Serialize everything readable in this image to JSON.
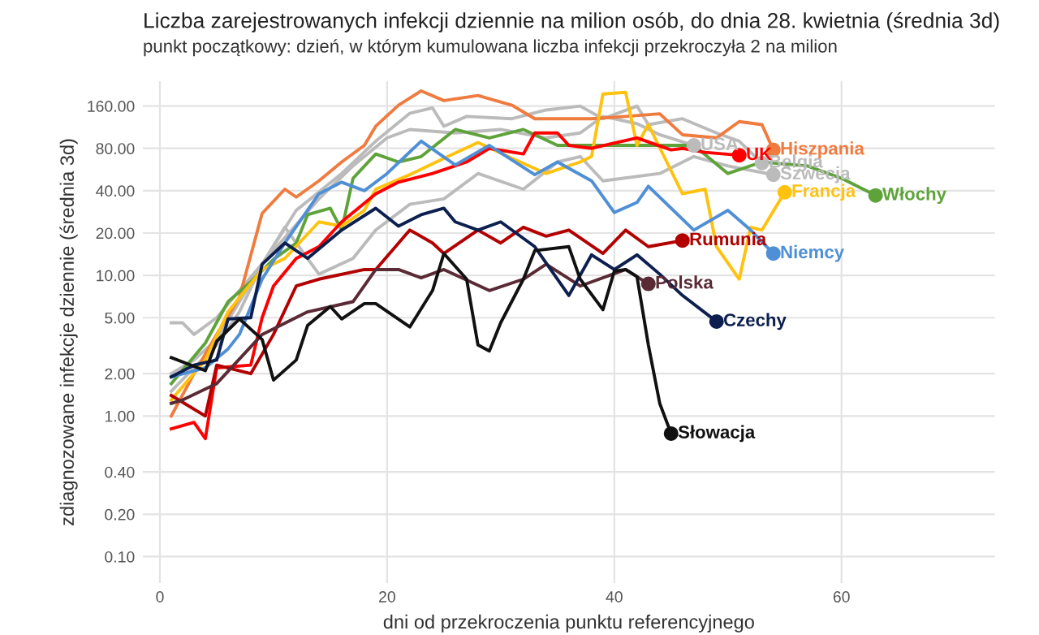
{
  "chart_data": {
    "type": "line",
    "title": "Liczba zarejestrowanych infekcji dziennie na milion osób, do dnia 28. kwietnia (średnia 3d)",
    "subtitle": "punkt początkowy: dzień, w którym kumulowana liczba infekcji przekroczyła 2 na milion",
    "xlabel": "dni od przekroczenia punktu referencyjnego",
    "ylabel": "zdiagnozowane infekcje dziennie (średnia 3d)",
    "log": true,
    "grid": true,
    "legend": false,
    "marker": "none",
    "line_style": "solid",
    "xlim": [
      -1.5,
      73.5
    ],
    "xticks": [
      0,
      20,
      40,
      60
    ],
    "ylim": [
      0.065,
      240
    ],
    "yticks": [
      {
        "value": 0.1,
        "label": "0.10"
      },
      {
        "value": 0.2,
        "label": "0.20"
      },
      {
        "value": 0.4,
        "label": "0.40"
      },
      {
        "value": 1,
        "label": "1.00"
      },
      {
        "value": 2,
        "label": "2.00"
      },
      {
        "value": 5,
        "label": "5.00"
      },
      {
        "value": 10,
        "label": "10.00"
      },
      {
        "value": 20,
        "label": "20.00"
      },
      {
        "value": 40,
        "label": "40.00"
      },
      {
        "value": 80,
        "label": "80.00"
      },
      {
        "value": 160,
        "label": "160.00"
      }
    ],
    "series": [
      {
        "name": "USA",
        "color": "#bbbbbb",
        "x": [
          1,
          2,
          3,
          5,
          7,
          10,
          14,
          17,
          20,
          22,
          26,
          30,
          34,
          37,
          39,
          42,
          44,
          47
        ],
        "values": [
          4.6,
          4.6,
          3.8,
          5.0,
          7.8,
          15,
          35,
          60,
          95,
          109,
          103,
          109,
          95,
          103,
          135,
          120,
          100,
          84
        ]
      },
      {
        "name": "Belgia",
        "color": "#bbbbbb",
        "x": [
          1,
          3,
          5,
          7,
          9,
          12,
          16,
          19,
          22,
          24,
          25,
          27,
          31,
          34,
          37,
          39,
          42,
          43,
          46,
          49,
          51,
          53
        ],
        "values": [
          2.0,
          2.5,
          3.5,
          6.5,
          12,
          29,
          53,
          90,
          142,
          155,
          115,
          135,
          130,
          150,
          160,
          130,
          160,
          118,
          130,
          103,
          90,
          63
        ]
      },
      {
        "name": "Szwecja",
        "color": "#bbbbbb",
        "x": [
          1,
          3,
          5,
          7,
          9,
          11,
          14,
          17,
          19,
          22,
          25,
          28,
          32,
          35,
          37,
          39,
          44,
          47,
          50,
          54
        ],
        "values": [
          1.5,
          2.2,
          3.2,
          5.5,
          12,
          22,
          10.2,
          13.2,
          21,
          32,
          35,
          53,
          41,
          64,
          70,
          47,
          53,
          70,
          60,
          52
        ]
      },
      {
        "name": "Hiszpania",
        "color": "#f07b3f",
        "x": [
          1,
          3,
          5,
          7,
          9,
          11,
          12,
          14,
          16,
          18,
          19,
          21,
          23,
          25,
          28,
          31,
          33,
          36,
          38,
          41,
          44,
          46,
          49,
          51,
          53,
          54
        ],
        "values": [
          1.0,
          2.0,
          3.8,
          7,
          27.6,
          41,
          36,
          47,
          64,
          84,
          115,
          162,
          205,
          175,
          190,
          162,
          130,
          130,
          130,
          135,
          141,
          100,
          95,
          124,
          118,
          78
        ]
      },
      {
        "name": "Włochy",
        "color": "#5ea33a",
        "x": [
          1,
          4,
          6,
          8,
          10,
          12,
          13,
          15,
          16,
          17,
          19,
          21,
          23,
          26,
          29,
          32,
          35,
          38,
          42,
          47,
          50,
          53,
          57,
          60,
          63
        ],
        "values": [
          1.7,
          3.3,
          6.5,
          9,
          13,
          17,
          27,
          30,
          21,
          49,
          73,
          64,
          70,
          109,
          95,
          109,
          84,
          84,
          84,
          84,
          53,
          64,
          60,
          49,
          37
        ]
      },
      {
        "name": "Francja",
        "color": "#ffc20e",
        "x": [
          1,
          4,
          6,
          9,
          11,
          14,
          16,
          18,
          19,
          22,
          25,
          28,
          31,
          34,
          37,
          38,
          39,
          41,
          42,
          43,
          46,
          48,
          49,
          51,
          52,
          53,
          55
        ],
        "values": [
          1.3,
          2.5,
          5.5,
          11,
          13.2,
          24,
          22.4,
          29,
          41,
          52,
          68,
          88,
          68,
          53,
          64,
          70,
          195,
          200,
          84,
          118,
          38,
          41,
          16,
          9.4,
          22,
          21,
          39
        ]
      },
      {
        "name": "UK",
        "color": "#ff0000",
        "x": [
          1,
          3,
          4,
          5,
          8,
          9,
          10,
          12,
          14,
          16,
          19,
          21,
          24,
          27,
          29,
          32,
          33,
          35,
          36,
          38,
          42,
          45,
          46,
          48,
          51
        ],
        "values": [
          0.81,
          0.9,
          0.69,
          2.2,
          2.3,
          5,
          8.4,
          13.2,
          16,
          24,
          38,
          46,
          53,
          64,
          80,
          73,
          103,
          103,
          84,
          80,
          95,
          78,
          80,
          75,
          71.5
        ]
      },
      {
        "name": "Niemcy",
        "color": "#4f8fd6",
        "x": [
          1,
          4,
          6,
          7,
          9,
          11,
          14,
          16,
          18,
          20,
          23,
          26,
          29,
          33,
          35,
          38,
          40,
          42,
          43,
          47,
          50,
          52,
          54
        ],
        "values": [
          1.9,
          2.2,
          3.0,
          3.8,
          9.4,
          17,
          38,
          46,
          40,
          53,
          90,
          61,
          84,
          52,
          64,
          47,
          28,
          33,
          43,
          21,
          29,
          21,
          14.3
        ]
      },
      {
        "name": "Rumunia",
        "color": "#b30000",
        "x": [
          1,
          4,
          5,
          8,
          10,
          12,
          14,
          18,
          19,
          22,
          24,
          25,
          28,
          30,
          32,
          34,
          36,
          39,
          41,
          43,
          46
        ],
        "values": [
          1.4,
          1.0,
          2.3,
          2.0,
          3.8,
          8.4,
          9.4,
          11,
          11,
          21,
          17,
          14.3,
          21,
          17,
          22,
          19,
          21,
          14.3,
          21,
          16,
          17.7
        ]
      },
      {
        "name": "Polska",
        "color": "#5a2a35",
        "x": [
          1,
          2,
          5,
          9,
          13,
          17,
          19,
          21,
          23,
          25,
          29,
          32,
          34,
          37,
          41,
          43
        ],
        "values": [
          1.23,
          1.3,
          1.7,
          3.8,
          5.5,
          6.5,
          11,
          11,
          9.6,
          11,
          7.8,
          9.4,
          12,
          8.4,
          11,
          8.7
        ]
      },
      {
        "name": "Czechy",
        "color": "#0d1f4f",
        "x": [
          1,
          3,
          5,
          6,
          8,
          9,
          11,
          13,
          16,
          19,
          21,
          23,
          25,
          26,
          28,
          30,
          33,
          35,
          36,
          38,
          40,
          42,
          44,
          46,
          49
        ],
        "values": [
          1.9,
          2.3,
          2.5,
          4.9,
          5.0,
          12,
          17,
          13.2,
          21,
          30,
          22.4,
          27,
          30,
          24,
          21,
          24,
          16,
          9.4,
          7.2,
          14,
          11,
          14,
          10.2,
          7.2,
          4.7
        ]
      },
      {
        "name": "Słowacja",
        "color": "#111111",
        "x": [
          1,
          4,
          5,
          7,
          9,
          10,
          12,
          13,
          15,
          16,
          18,
          19,
          22,
          24,
          25,
          27,
          28,
          29,
          30,
          32,
          33,
          36,
          37,
          39,
          40,
          41,
          42,
          43,
          44,
          45
        ],
        "values": [
          2.6,
          2.1,
          3.4,
          4.9,
          3.5,
          1.8,
          2.5,
          4.4,
          6.0,
          4.9,
          6.3,
          6.3,
          4.3,
          7.8,
          14.3,
          9.4,
          3.2,
          2.9,
          4.6,
          9.4,
          15,
          16,
          9.4,
          5.7,
          10.7,
          11,
          9.8,
          3.2,
          1.23,
          0.75
        ]
      }
    ]
  }
}
